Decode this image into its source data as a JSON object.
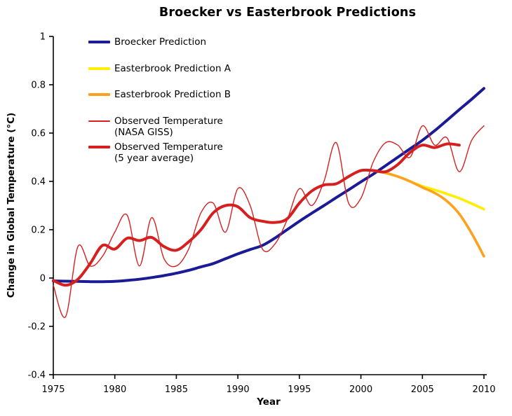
{
  "chart_data": {
    "type": "line",
    "title": "Broecker vs Easterbrook Predictions",
    "xlabel": "Year",
    "ylabel": "Change in Global Temperature (°C)",
    "xlim": [
      1975,
      2010
    ],
    "ylim": [
      -0.4,
      1
    ],
    "x_ticks": [
      1975,
      1980,
      1985,
      1990,
      1995,
      2000,
      2005,
      2010
    ],
    "x_tick_labels": [
      "1975",
      "1980",
      "1985",
      "1990",
      "1995",
      "2000",
      "2005",
      "2010"
    ],
    "y_ticks": [
      1,
      0.8,
      0.6,
      0.4,
      0.2,
      0,
      -0.2,
      -0.4
    ],
    "y_tick_labels": [
      "1",
      "0.8",
      "0.6",
      "0.4",
      "0.2",
      "0",
      "-0.2",
      "-0.4"
    ],
    "grid": false,
    "legend_position": "upper-left-inside",
    "axis_color": "#000000",
    "background_color": "#ffffff",
    "series": [
      {
        "key": "broecker-prediction",
        "name": "Broecker Prediction",
        "color": "#1b1b96",
        "line_width": 4,
        "x": [
          1975,
          1976,
          1977,
          1978,
          1979,
          1980,
          1981,
          1982,
          1983,
          1984,
          1985,
          1986,
          1987,
          1988,
          1989,
          1990,
          1991,
          1992,
          1993,
          1994,
          1995,
          1996,
          1997,
          1998,
          1999,
          2000,
          2001,
          2002,
          2003,
          2004,
          2005,
          2006,
          2007,
          2008,
          2009,
          2010
        ],
        "y": [
          -0.012,
          -0.013,
          -0.014,
          -0.015,
          -0.015,
          -0.014,
          -0.01,
          -0.005,
          0.002,
          0.01,
          0.02,
          0.032,
          0.046,
          0.06,
          0.08,
          0.1,
          0.118,
          0.135,
          0.165,
          0.2,
          0.235,
          0.268,
          0.3,
          0.333,
          0.365,
          0.398,
          0.43,
          0.465,
          0.5,
          0.535,
          0.57,
          0.61,
          0.653,
          0.697,
          0.74,
          0.785
        ]
      },
      {
        "key": "easterbrook-prediction-a",
        "name": "Easterbrook Prediction A",
        "color": "#ffee00",
        "line_width": 3.6,
        "x": [
          2001,
          2002,
          2003,
          2004,
          2005,
          2006,
          2007,
          2008,
          2009,
          2010
        ],
        "y": [
          0.445,
          0.435,
          0.42,
          0.4,
          0.38,
          0.365,
          0.348,
          0.33,
          0.308,
          0.285
        ]
      },
      {
        "key": "easterbrook-prediction-b",
        "name": "Easterbrook Prediction B",
        "color": "#ffa11e",
        "line_width": 3.6,
        "x": [
          2001,
          2002,
          2003,
          2004,
          2005,
          2006,
          2007,
          2008,
          2009,
          2010
        ],
        "y": [
          0.445,
          0.435,
          0.42,
          0.4,
          0.375,
          0.352,
          0.318,
          0.265,
          0.185,
          0.09
        ]
      },
      {
        "key": "observed-temperature-nasa-giss",
        "name": "Observed Temperature (NASA GISS)",
        "color": "#d62020",
        "line_width": 1.4,
        "x": [
          1975,
          1976,
          1977,
          1978,
          1979,
          1980,
          1981,
          1982,
          1983,
          1984,
          1985,
          1986,
          1987,
          1988,
          1989,
          1990,
          1991,
          1992,
          1993,
          1994,
          1995,
          1996,
          1997,
          1998,
          1999,
          2000,
          2001,
          2002,
          2003,
          2004,
          2005,
          2006,
          2007,
          2008,
          2009,
          2010
        ],
        "y": [
          -0.03,
          -0.16,
          0.13,
          0.05,
          0.09,
          0.19,
          0.26,
          0.05,
          0.25,
          0.08,
          0.05,
          0.12,
          0.27,
          0.31,
          0.19,
          0.37,
          0.3,
          0.12,
          0.14,
          0.24,
          0.37,
          0.3,
          0.4,
          0.56,
          0.31,
          0.33,
          0.48,
          0.56,
          0.55,
          0.5,
          0.63,
          0.55,
          0.58,
          0.44,
          0.57,
          0.63
        ]
      },
      {
        "key": "observed-temperature-5yr-average",
        "name": "Observed Temperature (5 year average)",
        "color": "#d62020",
        "line_width": 4,
        "x": [
          1975,
          1976,
          1977,
          1978,
          1979,
          1980,
          1981,
          1982,
          1983,
          1984,
          1985,
          1986,
          1987,
          1988,
          1989,
          1990,
          1991,
          1992,
          1993,
          1994,
          1995,
          1996,
          1997,
          1998,
          1999,
          2000,
          2001,
          2002,
          2003,
          2004,
          2005,
          2006,
          2007,
          2008
        ],
        "y": [
          -0.01,
          -0.03,
          -0.005,
          0.06,
          0.135,
          0.12,
          0.165,
          0.155,
          0.168,
          0.13,
          0.115,
          0.15,
          0.2,
          0.27,
          0.3,
          0.295,
          0.25,
          0.235,
          0.23,
          0.245,
          0.31,
          0.36,
          0.385,
          0.39,
          0.42,
          0.445,
          0.445,
          0.44,
          0.47,
          0.52,
          0.55,
          0.54,
          0.555,
          0.55
        ]
      }
    ],
    "legend": {
      "items": [
        {
          "series_index": 0,
          "lines": [
            "Broecker Prediction"
          ]
        },
        {
          "series_index": 1,
          "lines": [
            "Easterbrook Prediction A"
          ]
        },
        {
          "series_index": 2,
          "lines": [
            "Easterbrook Prediction B"
          ]
        },
        {
          "series_index": 3,
          "lines": [
            "Observed Temperature",
            "(NASA GISS)"
          ]
        },
        {
          "series_index": 4,
          "lines": [
            "Observed Temperature",
            "(5 year average)"
          ]
        }
      ]
    }
  }
}
